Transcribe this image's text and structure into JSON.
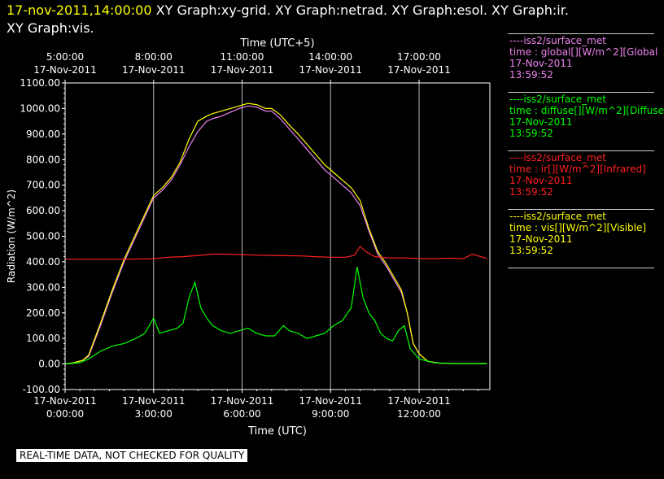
{
  "header": {
    "timestamp": "17-nov-2011,14:00:00",
    "graphs_line1": "XY Graph:xy-grid.  XY Graph:netrad.  XY Graph:esol.  XY Graph:ir.",
    "graphs_line2": "XY Graph:vis."
  },
  "legend": [
    {
      "source": "----iss2/surface_met",
      "label": "time : global[][W/m^2][Global",
      "date": "17-Nov-2011",
      "time": "13:59:52",
      "color": "#ee82ee"
    },
    {
      "source": "----iss2/surface_met",
      "label": "time : diffuse[][W/m^2][Diffuse",
      "date": "17-Nov-2011",
      "time": "13:59:52",
      "color": "#00ff00"
    },
    {
      "source": "----iss2/surface_met",
      "label": "time : ir[][W/m^2][Infrared]",
      "date": "17-Nov-2011",
      "time": "13:59:52",
      "color": "#ff2020"
    },
    {
      "source": "----iss2/surface_met",
      "label": "time : vis[][W/m^2][Visible]",
      "date": "17-Nov-2011",
      "time": "13:59:52",
      "color": "#ffff00"
    }
  ],
  "footer": "REAL-TIME DATA, NOT CHECKED FOR QUALITY",
  "chart_data": {
    "type": "line",
    "title_top": "Time (UTC+5)",
    "xlabel": "Time (UTC)",
    "ylabel": "Radiation (W/m^2)",
    "xlim": [
      0,
      14.4
    ],
    "ylim": [
      -100,
      1100
    ],
    "grid": true,
    "y_ticks": [
      {
        "v": 1100,
        "label": "1100.00"
      },
      {
        "v": 1000,
        "label": "1000.00"
      },
      {
        "v": 900,
        "label": "900.00"
      },
      {
        "v": 800,
        "label": "800.00"
      },
      {
        "v": 700,
        "label": "700.00"
      },
      {
        "v": 600,
        "label": "600.00"
      },
      {
        "v": 500,
        "label": "500.00"
      },
      {
        "v": 400,
        "label": "400.00"
      },
      {
        "v": 300,
        "label": "300.00"
      },
      {
        "v": 200,
        "label": "200.00"
      },
      {
        "v": 100,
        "label": "100.00"
      },
      {
        "v": 0,
        "label": "0.00"
      },
      {
        "v": -100,
        "label": "-100.00"
      }
    ],
    "x_ticks": [
      {
        "v": 0,
        "date": "17-Nov-2011",
        "time": "0:00:00"
      },
      {
        "v": 3,
        "date": "17-Nov-2011",
        "time": "3:00:00"
      },
      {
        "v": 6,
        "date": "17-Nov-2011",
        "time": "6:00:00"
      },
      {
        "v": 9,
        "date": "17-Nov-2011",
        "time": "9:00:00"
      },
      {
        "v": 12,
        "date": "17-Nov-2011",
        "time": "12:00:00"
      }
    ],
    "top_ticks": [
      {
        "v": 0,
        "time": "5:00:00",
        "date": "17-Nov-2011"
      },
      {
        "v": 3,
        "time": "8:00:00",
        "date": "17-Nov-2011"
      },
      {
        "v": 6,
        "time": "11:00:00",
        "date": "17-Nov-2011"
      },
      {
        "v": 9,
        "time": "14:00:00",
        "date": "17-Nov-2011"
      },
      {
        "v": 12,
        "time": "17:00:00",
        "date": "17-Nov-2011"
      }
    ],
    "series": [
      {
        "name": "global",
        "color": "#ee82ee",
        "x": [
          0,
          0.3,
          0.6,
          0.8,
          1.2,
          1.6,
          2.0,
          2.4,
          2.8,
          3.0,
          3.3,
          3.6,
          3.9,
          4.2,
          4.5,
          4.8,
          5.0,
          5.3,
          5.6,
          5.9,
          6.2,
          6.5,
          6.8,
          7.0,
          7.3,
          7.6,
          7.9,
          8.2,
          8.5,
          8.8,
          9.1,
          9.4,
          9.7,
          10.0,
          10.3,
          10.6,
          10.9,
          11.2,
          11.4,
          11.6,
          11.8,
          12.0,
          12.3,
          12.7,
          13.2,
          13.8,
          14.3
        ],
        "y": [
          0,
          5,
          15,
          30,
          150,
          280,
          400,
          500,
          600,
          650,
          680,
          720,
          780,
          850,
          910,
          950,
          960,
          970,
          985,
          1000,
          1010,
          1005,
          990,
          990,
          960,
          920,
          880,
          840,
          800,
          760,
          730,
          700,
          670,
          620,
          520,
          430,
          380,
          320,
          280,
          200,
          80,
          40,
          10,
          3,
          2,
          2,
          2
        ]
      },
      {
        "name": "vis",
        "color": "#ffff00",
        "x": [
          0,
          0.3,
          0.6,
          0.8,
          1.2,
          1.6,
          2.0,
          2.4,
          2.8,
          3.0,
          3.3,
          3.6,
          3.9,
          4.2,
          4.5,
          4.8,
          5.0,
          5.3,
          5.6,
          5.9,
          6.2,
          6.5,
          6.8,
          7.0,
          7.3,
          7.6,
          7.9,
          8.2,
          8.5,
          8.8,
          9.1,
          9.4,
          9.7,
          10.0,
          10.3,
          10.6,
          10.9,
          11.2,
          11.4,
          11.6,
          11.8,
          12.0,
          12.3,
          12.7,
          13.2,
          13.8,
          14.3
        ],
        "y": [
          0,
          5,
          15,
          35,
          160,
          290,
          410,
          510,
          610,
          660,
          690,
          730,
          790,
          880,
          950,
          970,
          980,
          990,
          1000,
          1010,
          1020,
          1015,
          1000,
          1000,
          975,
          935,
          900,
          860,
          820,
          780,
          750,
          720,
          690,
          640,
          530,
          440,
          390,
          330,
          290,
          200,
          80,
          40,
          10,
          3,
          2,
          2,
          2
        ]
      },
      {
        "name": "diffuse",
        "color": "#00ff00",
        "x": [
          0,
          0.5,
          0.8,
          1.2,
          1.6,
          2.0,
          2.4,
          2.7,
          3.0,
          3.2,
          3.5,
          3.8,
          4.0,
          4.2,
          4.4,
          4.6,
          4.8,
          5.0,
          5.3,
          5.6,
          5.9,
          6.2,
          6.5,
          6.8,
          7.1,
          7.4,
          7.6,
          7.9,
          8.2,
          8.5,
          8.8,
          9.1,
          9.4,
          9.7,
          9.9,
          10.1,
          10.3,
          10.5,
          10.7,
          10.9,
          11.1,
          11.3,
          11.5,
          11.7,
          12.0,
          12.5,
          13.0,
          14.3
        ],
        "y": [
          0,
          5,
          20,
          50,
          70,
          80,
          100,
          120,
          180,
          120,
          130,
          140,
          160,
          260,
          320,
          220,
          180,
          150,
          130,
          120,
          130,
          140,
          120,
          110,
          110,
          150,
          130,
          120,
          100,
          110,
          120,
          150,
          170,
          220,
          380,
          260,
          200,
          170,
          120,
          100,
          90,
          130,
          150,
          60,
          20,
          5,
          2,
          2
        ]
      },
      {
        "name": "ir",
        "color": "#ff2020",
        "x": [
          0,
          1,
          2,
          3,
          3.5,
          4,
          4.5,
          5,
          5.5,
          6,
          6.5,
          7,
          7.5,
          8,
          8.5,
          9,
          9.5,
          9.8,
          10.0,
          10.2,
          10.5,
          11,
          11.5,
          12,
          12.5,
          13,
          13.5,
          13.8,
          14.3
        ],
        "y": [
          410,
          410,
          410,
          412,
          418,
          420,
          425,
          430,
          430,
          428,
          426,
          425,
          424,
          423,
          420,
          418,
          418,
          425,
          460,
          440,
          420,
          415,
          415,
          413,
          412,
          414,
          412,
          430,
          413
        ]
      }
    ]
  }
}
